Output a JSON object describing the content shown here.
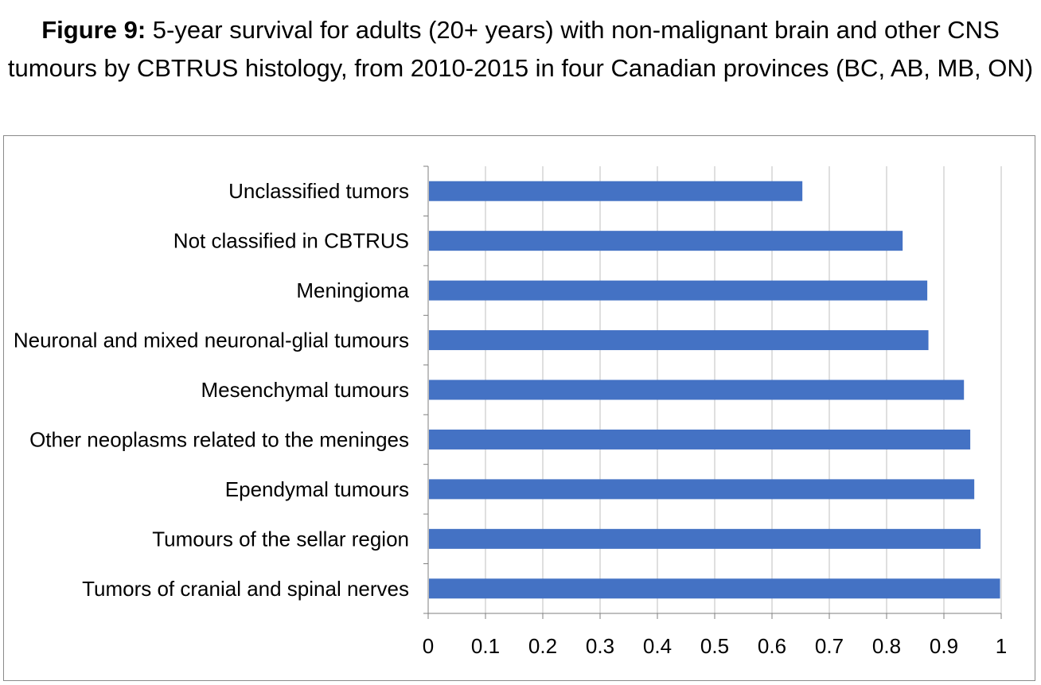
{
  "title": {
    "lead": "Figure 9:",
    "text": "5-year survival for adults (20+ years) with non-malignant brain and other CNS tumours by CBTRUS histology, from 2010-2015 in four Canadian provinces (BC, AB, MB, ON)"
  },
  "colors": {
    "bar": "#4472C4",
    "grid": "#bfbfbf",
    "axis": "#7f7f7f"
  },
  "chart_data": {
    "type": "bar",
    "orientation": "horizontal",
    "categories": [
      "Unclassified tumors",
      "Not classified in CBTRUS",
      "Meningioma",
      "Neuronal and mixed neuronal-glial tumours",
      "Mesenchymal tumours",
      "Other neoplasms related to the meninges",
      "Ependymal tumours",
      "Tumours of the sellar region",
      "Tumors of cranial and spinal nerves"
    ],
    "values": [
      0.653,
      0.828,
      0.871,
      0.873,
      0.935,
      0.946,
      0.953,
      0.964,
      0.998
    ],
    "xlim": [
      0,
      1
    ],
    "xticks": [
      "0",
      "0.1",
      "0.2",
      "0.3",
      "0.4",
      "0.5",
      "0.6",
      "0.7",
      "0.8",
      "0.9",
      "1"
    ],
    "grid": true,
    "legend": "none",
    "xlabel": "",
    "ylabel": ""
  }
}
